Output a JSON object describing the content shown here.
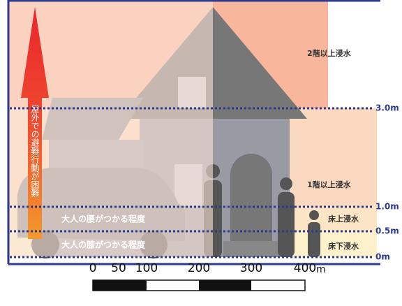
{
  "levels": [
    "3.0m",
    "1.0m",
    "0.5m",
    "0m"
  ],
  "zones": [
    "2階以上浸水",
    "1階以上浸水",
    "床上浸水",
    "床下浸水"
  ],
  "notes": [
    "大人の腰がつかる程度",
    "大人の膝がつかる程度"
  ],
  "arrow_text": "屋外での避難行動が困難",
  "scale": {
    "ticks": [
      "0",
      "50",
      "100",
      "200",
      "300",
      "400"
    ],
    "unit": "m"
  }
}
